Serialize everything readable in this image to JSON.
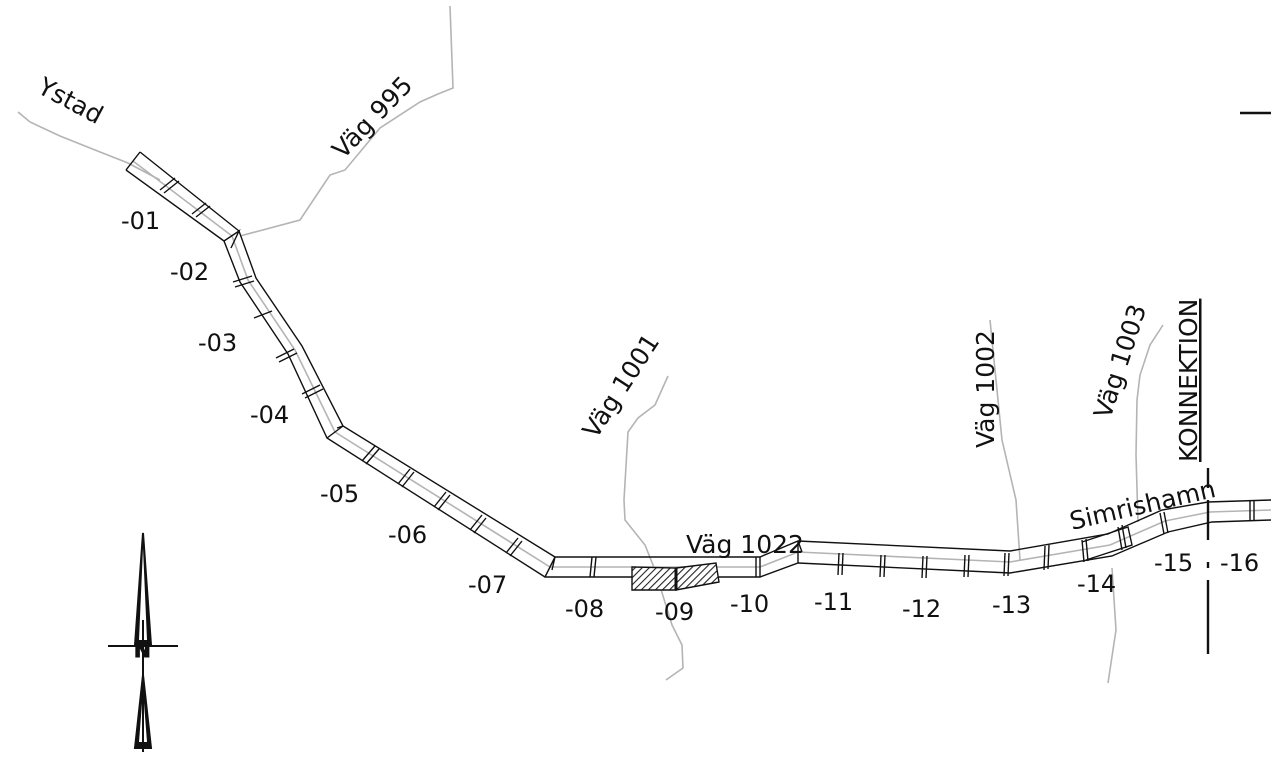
{
  "places": {
    "ystad": "Ystad",
    "simrishamn": "Simrishamn"
  },
  "roads": {
    "vag995": "Väg 995",
    "vag1001": "Väg 1001",
    "vag1002": "Väg 1002",
    "vag1003": "Väg 1003",
    "vag1022": "Väg 1022"
  },
  "konnektion": "KONNEKTION",
  "segments": [
    "-01",
    "-02",
    "-03",
    "-04",
    "-05",
    "-06",
    "-07",
    "-08",
    "-09",
    "-10",
    "-11",
    "-12",
    "-13",
    "-14",
    "-15",
    "-16"
  ],
  "north_arrow": {
    "label": "N"
  },
  "colors": {
    "line": "#111111",
    "road": "#b4b4b4",
    "hatch": "#222222"
  }
}
